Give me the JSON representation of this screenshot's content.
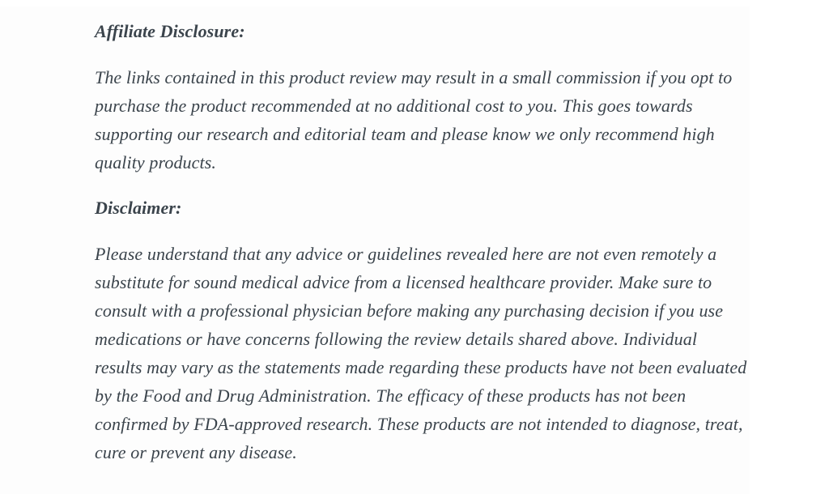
{
  "page": {
    "colors": {
      "text": "#3b444c",
      "page_bg": "#ffffff",
      "card_bg": "#fdfdfd"
    }
  },
  "article": {
    "sections": [
      {
        "heading": "Affiliate Disclosure:",
        "body": "The links contained in this product review may result in a small commission if you opt to purchase the product recommended at no additional cost to you. This goes towards supporting our research and editorial team and please know we only recommend high quality products."
      },
      {
        "heading": "Disclaimer:",
        "body": "Please understand that any advice or guidelines revealed here are not even remotely a substitute for sound medical advice from a licensed healthcare provider. Make sure to consult with a professional physician before making any purchasing decision if you use medications or have concerns following the review details shared above. Individual results may vary as the statements made regarding these products have not been evaluated by the Food and Drug Administration. The efficacy of these products has not been confirmed by FDA-approved research. These products are not intended to diagnose, treat, cure or prevent any disease."
      }
    ]
  }
}
